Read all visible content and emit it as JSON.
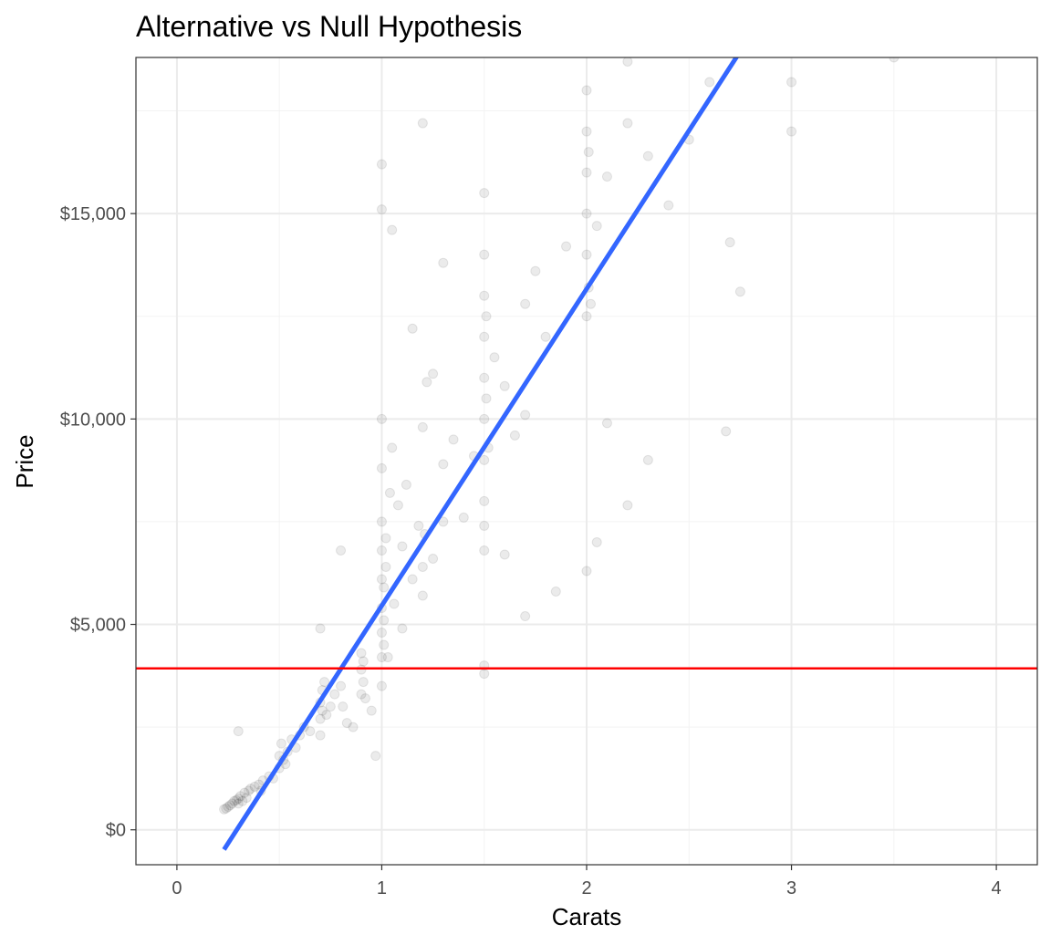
{
  "chart_data": {
    "type": "scatter",
    "title": "Alternative vs Null Hypothesis",
    "xlabel": "Carats",
    "ylabel": "Price",
    "xlim": [
      -0.2,
      4.2
    ],
    "ylim": [
      -850,
      18800
    ],
    "x_ticks": [
      {
        "value": 0,
        "label": "0"
      },
      {
        "value": 1,
        "label": "1"
      },
      {
        "value": 2,
        "label": "2"
      },
      {
        "value": 3,
        "label": "3"
      },
      {
        "value": 4,
        "label": "4"
      }
    ],
    "y_ticks": [
      {
        "value": 0,
        "label": "$0"
      },
      {
        "value": 5000,
        "label": "$5,000"
      },
      {
        "value": 10000,
        "label": "$10,000"
      },
      {
        "value": 15000,
        "label": "$15,000"
      }
    ],
    "grid": true,
    "point_color": "#000000",
    "point_opacity": 0.08,
    "series": [
      {
        "kind": "points",
        "points": [
          [
            0.23,
            500
          ],
          [
            0.24,
            520
          ],
          [
            0.25,
            560
          ],
          [
            0.26,
            600
          ],
          [
            0.27,
            640
          ],
          [
            0.28,
            700
          ],
          [
            0.29,
            720
          ],
          [
            0.3,
            760
          ],
          [
            0.3,
            640
          ],
          [
            0.31,
            820
          ],
          [
            0.32,
            700
          ],
          [
            0.33,
            900
          ],
          [
            0.34,
            780
          ],
          [
            0.35,
            950
          ],
          [
            0.36,
            1000
          ],
          [
            0.38,
            1050
          ],
          [
            0.4,
            1100
          ],
          [
            0.41,
            950
          ],
          [
            0.42,
            1200
          ],
          [
            0.45,
            1300
          ],
          [
            0.47,
            1250
          ],
          [
            0.5,
            1500
          ],
          [
            0.5,
            1800
          ],
          [
            0.51,
            2100
          ],
          [
            0.52,
            1700
          ],
          [
            0.53,
            1600
          ],
          [
            0.54,
            1900
          ],
          [
            0.56,
            2200
          ],
          [
            0.58,
            2000
          ],
          [
            0.6,
            2300
          ],
          [
            0.62,
            2500
          ],
          [
            0.65,
            2400
          ],
          [
            0.7,
            2300
          ],
          [
            0.7,
            2700
          ],
          [
            0.7,
            3100
          ],
          [
            0.71,
            3400
          ],
          [
            0.71,
            2900
          ],
          [
            0.72,
            3600
          ],
          [
            0.73,
            2800
          ],
          [
            0.75,
            3000
          ],
          [
            0.77,
            3300
          ],
          [
            0.8,
            3500
          ],
          [
            0.81,
            3000
          ],
          [
            0.83,
            2600
          ],
          [
            0.86,
            2500
          ],
          [
            0.9,
            3300
          ],
          [
            0.9,
            3900
          ],
          [
            0.9,
            4300
          ],
          [
            0.91,
            4100
          ],
          [
            0.91,
            3600
          ],
          [
            0.92,
            3200
          ],
          [
            0.95,
            2900
          ],
          [
            0.97,
            1800
          ],
          [
            1.0,
            3500
          ],
          [
            1.0,
            4200
          ],
          [
            1.0,
            4800
          ],
          [
            1.0,
            5400
          ],
          [
            1.0,
            6100
          ],
          [
            1.0,
            6800
          ],
          [
            1.0,
            7500
          ],
          [
            1.0,
            8800
          ],
          [
            1.0,
            10000
          ],
          [
            1.01,
            4500
          ],
          [
            1.01,
            5100
          ],
          [
            1.01,
            5900
          ],
          [
            1.02,
            6400
          ],
          [
            1.02,
            7100
          ],
          [
            1.03,
            4200
          ],
          [
            1.04,
            8200
          ],
          [
            1.05,
            9300
          ],
          [
            1.06,
            5500
          ],
          [
            1.08,
            7900
          ],
          [
            1.1,
            6900
          ],
          [
            1.1,
            4900
          ],
          [
            1.12,
            8400
          ],
          [
            1.15,
            6100
          ],
          [
            1.18,
            7400
          ],
          [
            1.2,
            5700
          ],
          [
            1.2,
            9800
          ],
          [
            1.2,
            6400
          ],
          [
            1.21,
            7200
          ],
          [
            1.22,
            10900
          ],
          [
            1.25,
            6600
          ],
          [
            1.3,
            7500
          ],
          [
            1.3,
            8900
          ],
          [
            1.35,
            9500
          ],
          [
            1.4,
            7600
          ],
          [
            1.5,
            8000
          ],
          [
            1.5,
            9000
          ],
          [
            1.5,
            10000
          ],
          [
            1.5,
            11000
          ],
          [
            1.5,
            12000
          ],
          [
            1.5,
            13000
          ],
          [
            1.5,
            14000
          ],
          [
            1.5,
            15500
          ],
          [
            1.5,
            6800
          ],
          [
            1.5,
            7400
          ],
          [
            1.51,
            10500
          ],
          [
            1.51,
            12500
          ],
          [
            1.52,
            9300
          ],
          [
            1.55,
            11500
          ],
          [
            1.6,
            10800
          ],
          [
            1.65,
            9600
          ],
          [
            1.7,
            12800
          ],
          [
            1.7,
            10100
          ],
          [
            1.75,
            13600
          ],
          [
            1.8,
            12000
          ],
          [
            1.9,
            14200
          ],
          [
            2.0,
            12500
          ],
          [
            2.0,
            14000
          ],
          [
            2.0,
            15000
          ],
          [
            2.0,
            16000
          ],
          [
            2.0,
            17000
          ],
          [
            2.0,
            18000
          ],
          [
            2.01,
            13200
          ],
          [
            2.01,
            16500
          ],
          [
            2.02,
            12800
          ],
          [
            2.05,
            14700
          ],
          [
            2.1,
            15900
          ],
          [
            2.2,
            17200
          ],
          [
            2.3,
            16400
          ],
          [
            2.4,
            15200
          ],
          [
            2.5,
            16800
          ],
          [
            2.6,
            18200
          ],
          [
            2.7,
            14300
          ],
          [
            1.0,
            16200
          ],
          [
            1.0,
            15100
          ],
          [
            1.2,
            17200
          ],
          [
            1.3,
            13800
          ],
          [
            1.05,
            14600
          ],
          [
            0.8,
            6800
          ],
          [
            0.7,
            4900
          ],
          [
            0.3,
            2400
          ],
          [
            2.0,
            6300
          ],
          [
            2.05,
            7000
          ],
          [
            2.1,
            9900
          ],
          [
            2.2,
            7900
          ],
          [
            2.3,
            9000
          ],
          [
            2.68,
            9700
          ],
          [
            2.75,
            13100
          ],
          [
            3.0,
            17000
          ],
          [
            3.0,
            18200
          ],
          [
            3.5,
            18800
          ],
          [
            2.2,
            18700
          ],
          [
            1.5,
            4000
          ],
          [
            1.5,
            3800
          ],
          [
            1.7,
            5200
          ],
          [
            1.85,
            5800
          ],
          [
            1.6,
            6700
          ],
          [
            1.45,
            9100
          ],
          [
            1.25,
            11100
          ],
          [
            1.15,
            12200
          ]
        ]
      },
      {
        "kind": "line",
        "name": "",
        "color": "#3366ff",
        "points": [
          [
            0.23,
            -480
          ],
          [
            2.75,
            18950
          ]
        ]
      },
      {
        "kind": "hline",
        "name": "",
        "color": "#ff0000",
        "y": 3930
      }
    ]
  }
}
